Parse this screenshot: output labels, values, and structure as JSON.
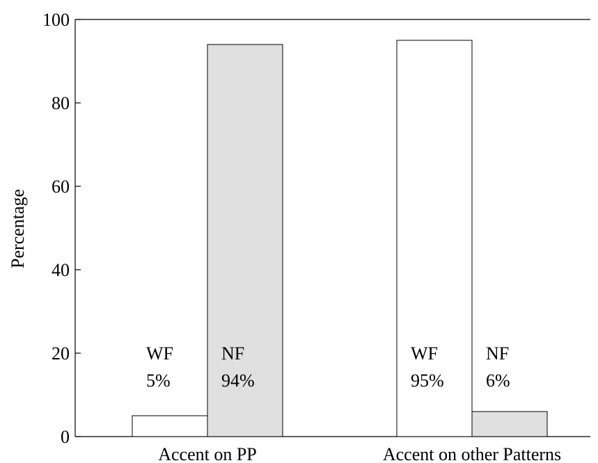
{
  "chart_data": {
    "type": "bar",
    "title": "",
    "xlabel": "",
    "ylabel": "Percentage",
    "ylim": [
      0,
      100
    ],
    "yticks": [
      0,
      20,
      40,
      60,
      80,
      100
    ],
    "categories": [
      "Accent on PP",
      "Accent on other Patterns"
    ],
    "series": [
      {
        "name": "WF",
        "values": [
          5,
          95
        ],
        "color": "#ffffff"
      },
      {
        "name": "NF",
        "values": [
          94,
          6
        ],
        "color": "#e0e0e0"
      }
    ],
    "annotations": [
      {
        "category": "Accent on PP",
        "series": "WF",
        "label": "WF",
        "value_text": "5%"
      },
      {
        "category": "Accent on PP",
        "series": "NF",
        "label": "NF",
        "value_text": "94%"
      },
      {
        "category": "Accent on other Patterns",
        "series": "WF",
        "label": "WF",
        "value_text": "95%"
      },
      {
        "category": "Accent on other Patterns",
        "series": "NF",
        "label": "NF",
        "value_text": "6%"
      }
    ],
    "grid": false,
    "legend": "none",
    "bar_edge_color": "#000000"
  }
}
